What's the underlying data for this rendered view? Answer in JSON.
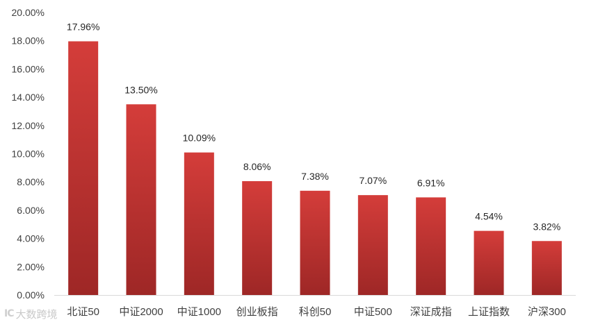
{
  "chart_data": {
    "type": "bar",
    "categories": [
      "北证50",
      "中证2000",
      "中证1000",
      "创业板指",
      "科创50",
      "中证500",
      "深证成指",
      "上证指数",
      "沪深300"
    ],
    "values": [
      17.96,
      13.5,
      10.09,
      8.06,
      7.38,
      7.07,
      6.91,
      4.54,
      3.82
    ],
    "data_labels": [
      "17.96%",
      "13.50%",
      "10.09%",
      "8.06%",
      "7.38%",
      "7.07%",
      "6.91%",
      "4.54%",
      "3.82%"
    ],
    "ylim": [
      0,
      20
    ],
    "yticks": [
      0,
      2,
      4,
      6,
      8,
      10,
      12,
      14,
      16,
      18,
      20
    ],
    "ytick_labels": [
      "0.00%",
      "2.00%",
      "4.00%",
      "6.00%",
      "8.00%",
      "10.00%",
      "12.00%",
      "14.00%",
      "16.00%",
      "18.00%",
      "20.00%"
    ],
    "title": "",
    "xlabel": "",
    "ylabel": "",
    "grid": false,
    "legend": "none",
    "colors": {
      "bar_top": "#d43d3a",
      "bar_bottom": "#9e2726",
      "axis": "#d9d9d9"
    }
  },
  "watermark": {
    "logo": "IC",
    "text": "大数跨境"
  }
}
